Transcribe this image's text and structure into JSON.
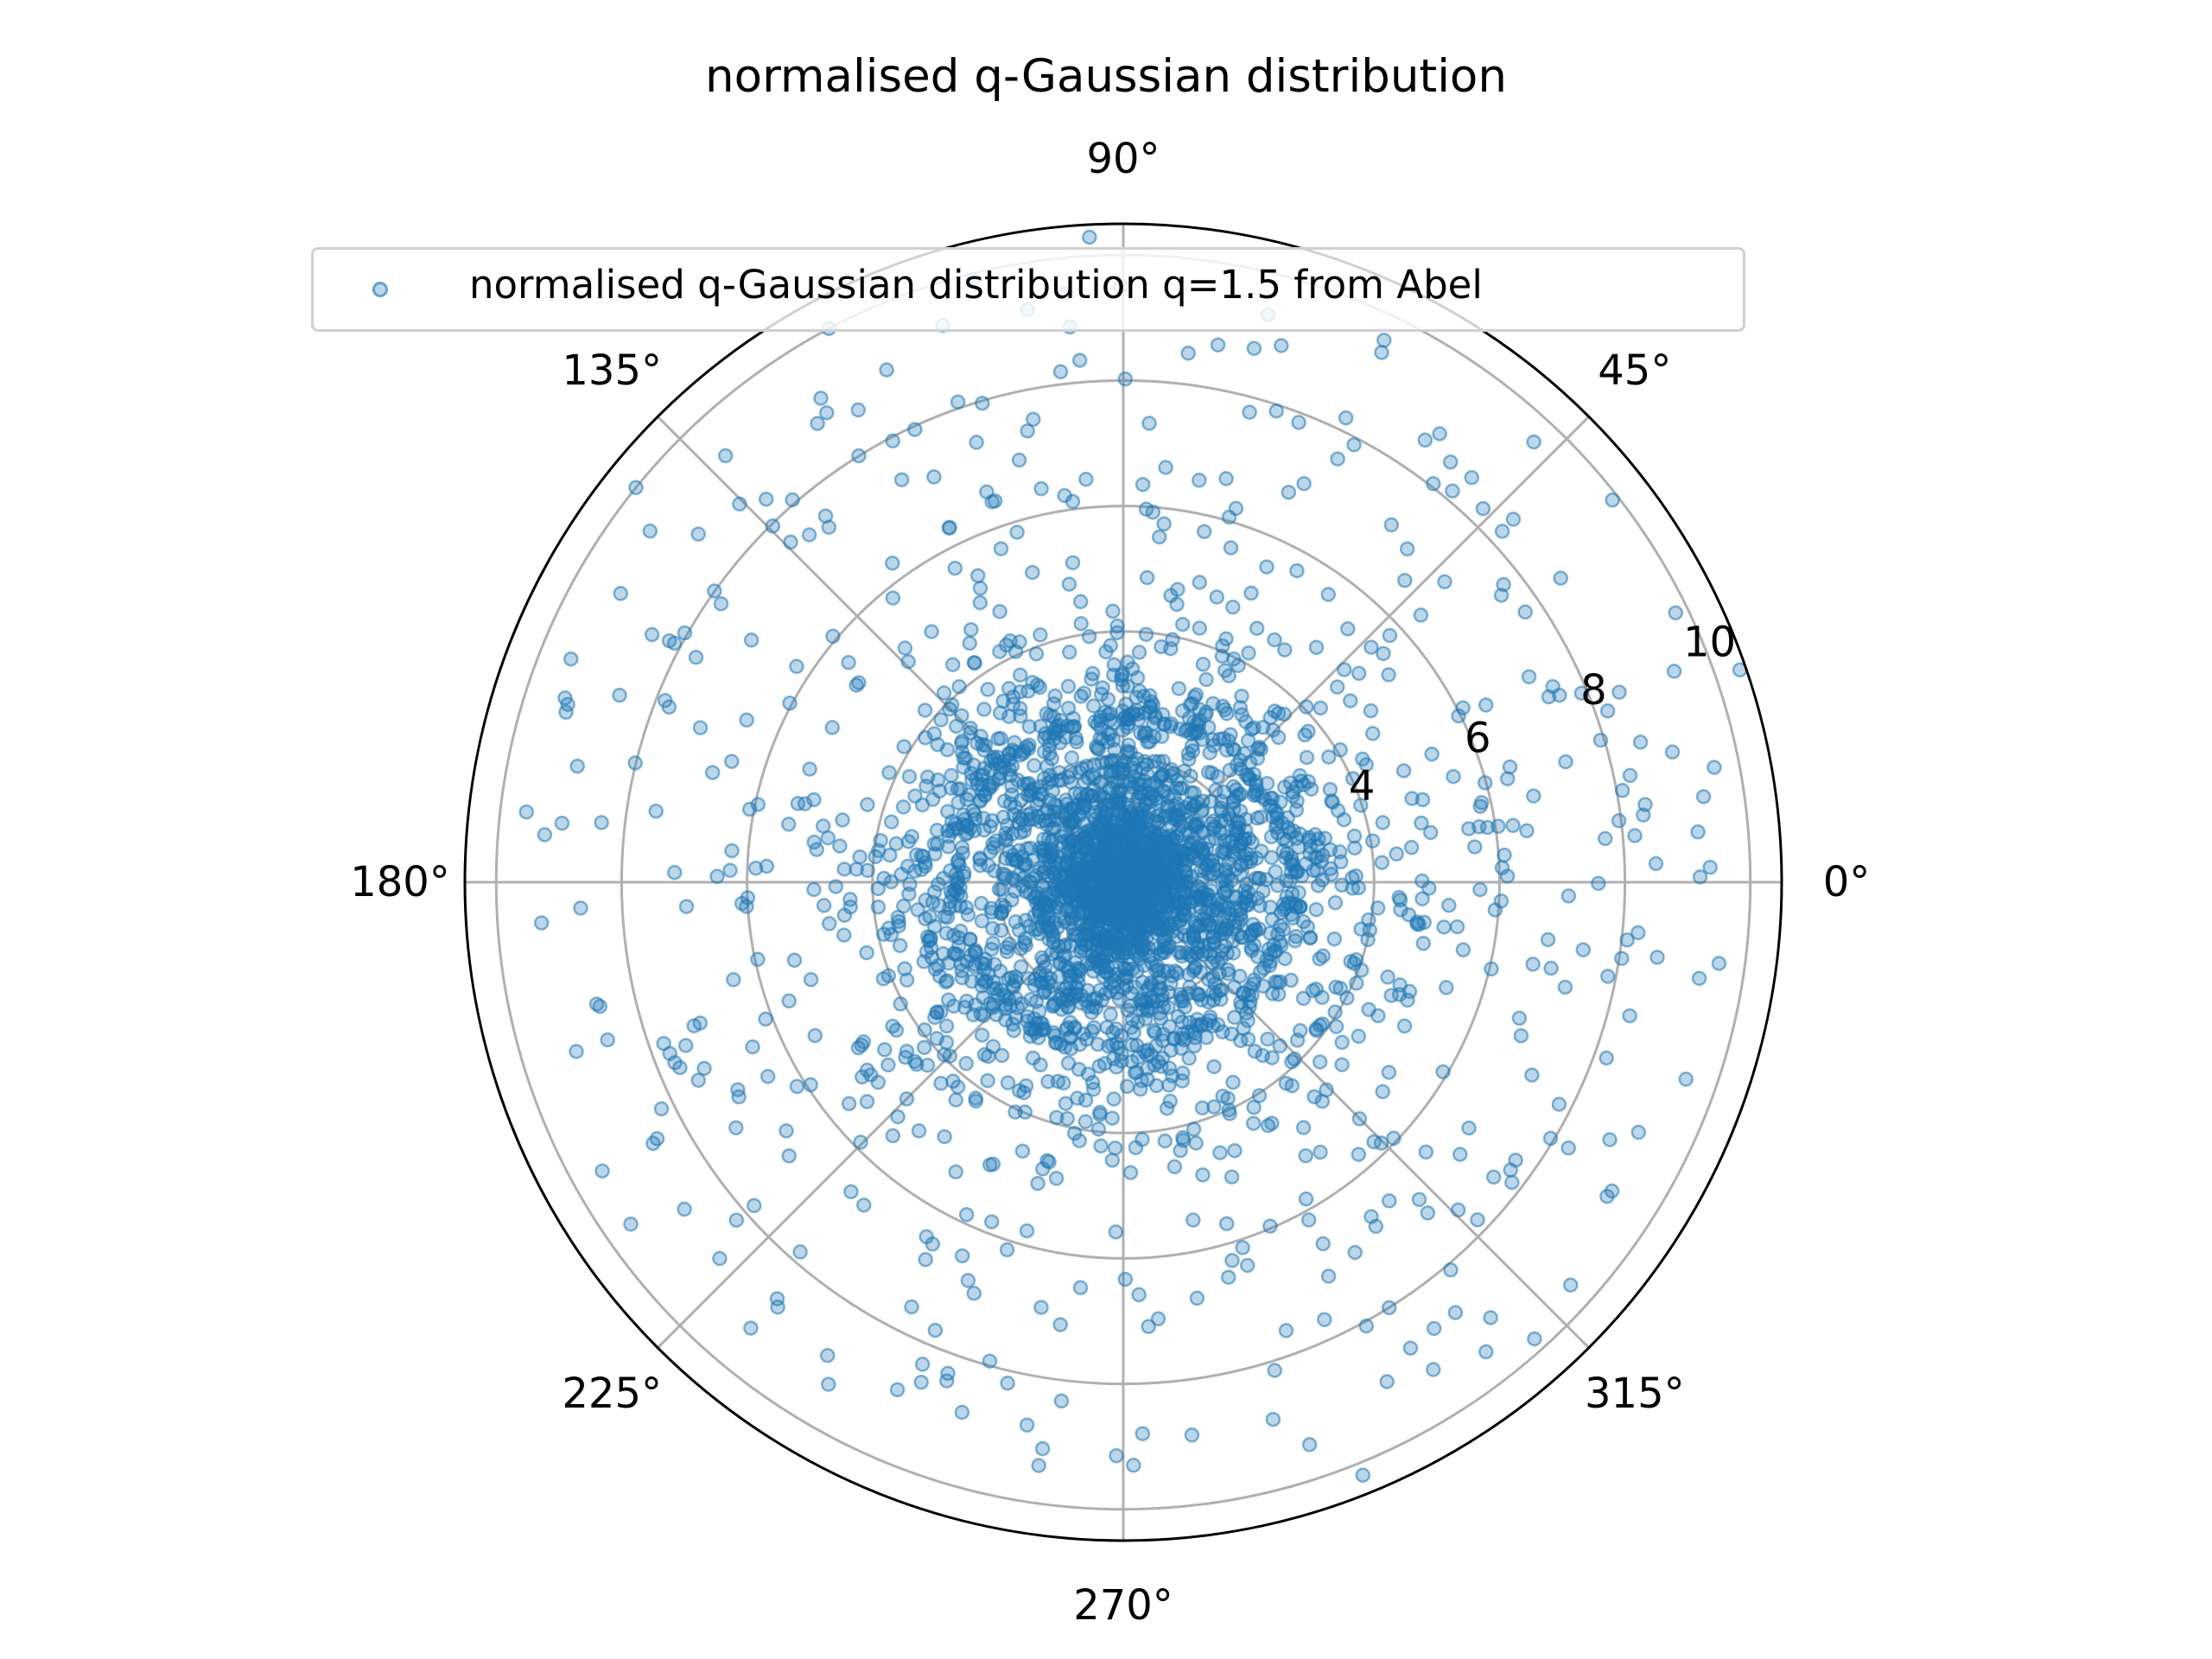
{
  "chart_data": {
    "type": "scatter",
    "projection": "polar",
    "title": "normalised q-Gaussian distribution",
    "legend": {
      "placement": "upper-center",
      "entries": [
        "normalised q-Gaussian distribution q=1.5 from Abel"
      ]
    },
    "theta_ticks": [
      "0°",
      "45°",
      "90°",
      "135°",
      "180°",
      "225°",
      "270°",
      "315°"
    ],
    "theta_tick_values_deg": [
      0,
      45,
      90,
      135,
      180,
      225,
      270,
      315
    ],
    "r_ticks": [
      "4",
      "6",
      "8",
      "10"
    ],
    "r_tick_values": [
      4,
      6,
      8,
      10
    ],
    "r_gridlines": [
      2,
      4,
      6,
      8,
      10
    ],
    "rlim": [
      0,
      10.5
    ],
    "r_label_angle_deg": 22.5,
    "grid": true,
    "marker_color": "#1f77b4",
    "marker_alpha": 0.3,
    "series": [
      {
        "name": "normalised q-Gaussian distribution q=1.5 from Abel",
        "sample_points": [
          {
            "theta": 93,
            "r": 10.3
          },
          {
            "theta": 104,
            "r": 9.9
          },
          {
            "theta": 97,
            "r": 8.2
          },
          {
            "theta": 80,
            "r": 8.7
          },
          {
            "theta": 83,
            "r": 8.5
          },
          {
            "theta": 64,
            "r": 9.4
          },
          {
            "theta": 38,
            "r": 9.9
          },
          {
            "theta": 47,
            "r": 9.6
          },
          {
            "theta": 19,
            "r": 10.4
          },
          {
            "theta": 11,
            "r": 9.6
          },
          {
            "theta": 5,
            "r": 9.2
          },
          {
            "theta": 2,
            "r": 8.5
          },
          {
            "theta": -8,
            "r": 8.6
          },
          {
            "theta": -20,
            "r": 8.2
          },
          {
            "theta": -33,
            "r": 9.2
          },
          {
            "theta": -42,
            "r": 9.6
          },
          {
            "theta": -48,
            "r": 9.8
          },
          {
            "theta": -68,
            "r": 10.2
          },
          {
            "theta": -89,
            "r": 9.3
          },
          {
            "theta": -88,
            "r": 8.8
          },
          {
            "theta": -112,
            "r": 8.6
          },
          {
            "theta": -122,
            "r": 8.9
          },
          {
            "theta": -137,
            "r": 8.8
          },
          {
            "theta": -151,
            "r": 9.5
          },
          {
            "theta": -163,
            "r": 8.6
          },
          {
            "theta": -176,
            "r": 9.3
          },
          {
            "theta": 174,
            "r": 9.0
          },
          {
            "theta": 168,
            "r": 8.9
          },
          {
            "theta": 158,
            "r": 9.5
          },
          {
            "theta": 141,
            "r": 10.0
          },
          {
            "theta": 133,
            "r": 9.3
          },
          {
            "theta": 122,
            "r": 9.1
          },
          {
            "theta": 118,
            "r": 10.0
          },
          {
            "theta": 109,
            "r": 8.1
          },
          {
            "theta": 72,
            "r": 7.9
          },
          {
            "theta": 26,
            "r": 9.8
          },
          {
            "theta": -27,
            "r": 7.8
          },
          {
            "theta": -58,
            "r": 8.0
          },
          {
            "theta": -103,
            "r": 8.2
          },
          {
            "theta": 152,
            "r": 8.2
          }
        ]
      }
    ]
  }
}
